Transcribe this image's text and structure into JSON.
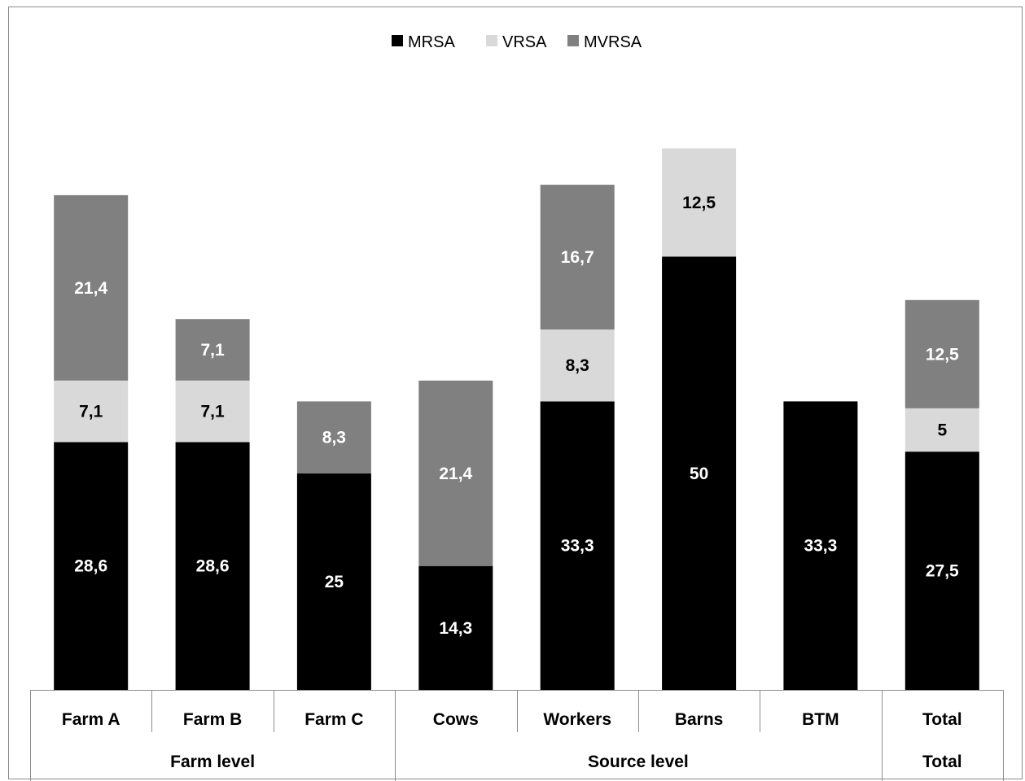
{
  "chart_data": {
    "type": "bar",
    "stacked": true,
    "categories": [
      "Farm A",
      "Farm B",
      "Farm C",
      "Cows",
      "Workers",
      "Barns",
      "BTM",
      "Total"
    ],
    "groups": [
      {
        "label": "Farm level",
        "categories": [
          "Farm A",
          "Farm B",
          "Farm C"
        ]
      },
      {
        "label": "Source level",
        "categories": [
          "Cows",
          "Workers",
          "Barns",
          "BTM"
        ]
      },
      {
        "label": "Total",
        "categories": [
          "Total"
        ]
      }
    ],
    "series": [
      {
        "name": "MRSA",
        "color": "#000000",
        "label_color": "#ffffff",
        "values": [
          28.6,
          28.6,
          25,
          14.3,
          33.3,
          50,
          33.3,
          27.5
        ],
        "labels": [
          "28,6",
          "28,6",
          "25",
          "14,3",
          "33,3",
          "50",
          "33,3",
          "27,5"
        ]
      },
      {
        "name": "VRSA",
        "color": "#d9d9d9",
        "label_color": "#000000",
        "values": [
          7.1,
          7.1,
          0,
          0,
          8.3,
          12.5,
          0,
          5
        ],
        "labels": [
          "7,1",
          "7,1",
          "",
          "",
          "8,3",
          "12,5",
          "",
          "5"
        ]
      },
      {
        "name": "MVRSA",
        "color": "#808080",
        "label_color": "#ffffff",
        "values": [
          21.4,
          7.1,
          8.3,
          21.4,
          16.7,
          0,
          0,
          12.5
        ],
        "labels": [
          "21,4",
          "7,1",
          "8,3",
          "21,4",
          "16,7",
          "",
          "",
          "12,5"
        ]
      }
    ],
    "legend_position": "top-center",
    "ylim": [
      0,
      63
    ],
    "gridlines": false,
    "title": "",
    "xlabel": "",
    "ylabel": ""
  }
}
